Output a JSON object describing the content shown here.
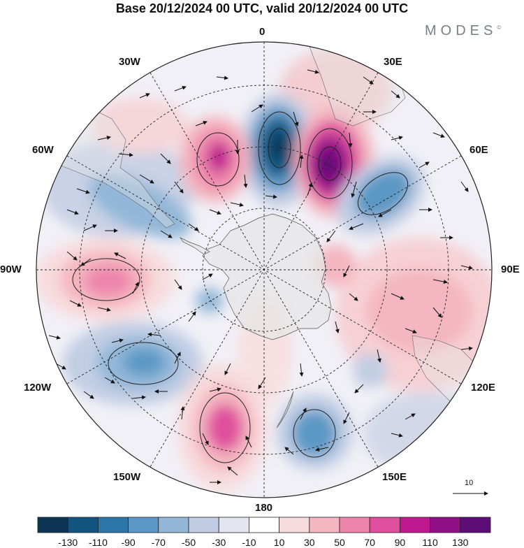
{
  "title": "Base 20/12/2024 00 UTC, valid 20/12/2024 00 UTC",
  "brand": "MODES",
  "brand_mark": "©",
  "longitude_labels": {
    "lon_0": "0",
    "lon_30e": "30E",
    "lon_60e": "60E",
    "lon_90e": "90E",
    "lon_120e": "120E",
    "lon_150e": "150E",
    "lon_180": "180",
    "lon_150w": "150W",
    "lon_120w": "120W",
    "lon_90w": "90W",
    "lon_60w": "60W",
    "lon_30w": "30W"
  },
  "vector_scale_label": "10",
  "colorbar": {
    "labels": [
      "-130",
      "-110",
      "-90",
      "-70",
      "-50",
      "-30",
      "-10",
      "10",
      "30",
      "50",
      "70",
      "90",
      "110",
      "130"
    ],
    "colors": [
      "#0c3553",
      "#11557f",
      "#2b75a8",
      "#5b98c5",
      "#93b7d8",
      "#c1cde4",
      "#e4e4f1",
      "#ffffff",
      "#f8dbdd",
      "#f4b6c0",
      "#ee85ac",
      "#df4f9d",
      "#be198f",
      "#8f0f86",
      "#5c0d77"
    ]
  },
  "anomaly_features": [
    {
      "id": "neg-0e",
      "value": -130
    },
    {
      "id": "pos-20e",
      "value": 130
    },
    {
      "id": "pos-25w",
      "value": 90
    },
    {
      "id": "neg-50e",
      "value": -70
    },
    {
      "id": "pos-90w",
      "value": 70
    },
    {
      "id": "neg-115w",
      "value": -70
    },
    {
      "id": "pos-160w",
      "value": 90
    },
    {
      "id": "neg-155e",
      "value": -70
    },
    {
      "id": "neg-60w",
      "value": -50
    },
    {
      "id": "pos-105e",
      "value": 30
    }
  ]
}
